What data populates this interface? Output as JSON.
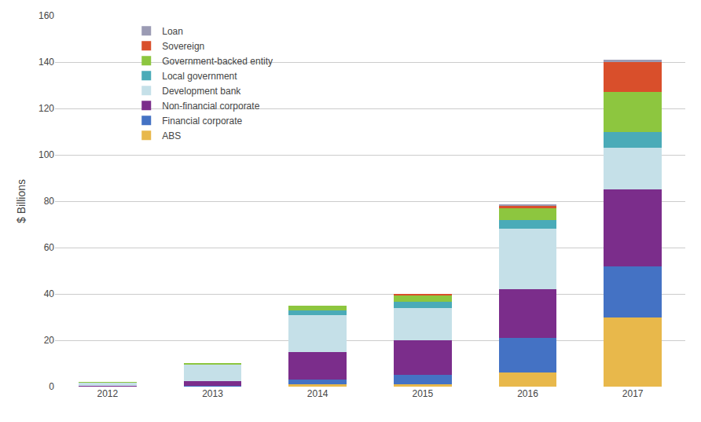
{
  "chart_data": {
    "type": "bar",
    "stacked": true,
    "categories": [
      "2012",
      "2013",
      "2014",
      "2015",
      "2016",
      "2017"
    ],
    "series": [
      {
        "name": "ABS",
        "color": "#E8B84B",
        "values": [
          0.0,
          0.0,
          1.0,
          1.0,
          6.0,
          30.0
        ]
      },
      {
        "name": "Financial corporate",
        "color": "#4472C4",
        "values": [
          0.3,
          0.5,
          2.0,
          4.0,
          15.0,
          22.0
        ]
      },
      {
        "name": "Non-financial corporate",
        "color": "#7B2D8B",
        "values": [
          0.2,
          2.0,
          12.0,
          15.0,
          21.0,
          33.0
        ]
      },
      {
        "name": "Development bank",
        "color": "#C5E0E8",
        "values": [
          1.2,
          7.0,
          16.0,
          14.0,
          26.0,
          18.0
        ]
      },
      {
        "name": "Local government",
        "color": "#4AABB8",
        "values": [
          0.1,
          0.3,
          2.0,
          2.5,
          4.0,
          7.0
        ]
      },
      {
        "name": "Government-backed entity",
        "color": "#8DC63F",
        "values": [
          0.1,
          0.2,
          2.0,
          3.0,
          5.0,
          17.0
        ]
      },
      {
        "name": "Sovereign",
        "color": "#D94F2B",
        "values": [
          0.0,
          0.0,
          0.0,
          0.5,
          1.0,
          13.0
        ]
      },
      {
        "name": "Loan",
        "color": "#9B9BB4",
        "values": [
          0.0,
          0.0,
          0.0,
          0.0,
          0.5,
          1.0
        ]
      }
    ],
    "ylabel": "$ Billions",
    "ylim": [
      0,
      160
    ],
    "yticks": [
      0,
      20,
      40,
      60,
      80,
      100,
      120,
      140,
      160
    ],
    "grid": true,
    "legend": "upper left"
  }
}
